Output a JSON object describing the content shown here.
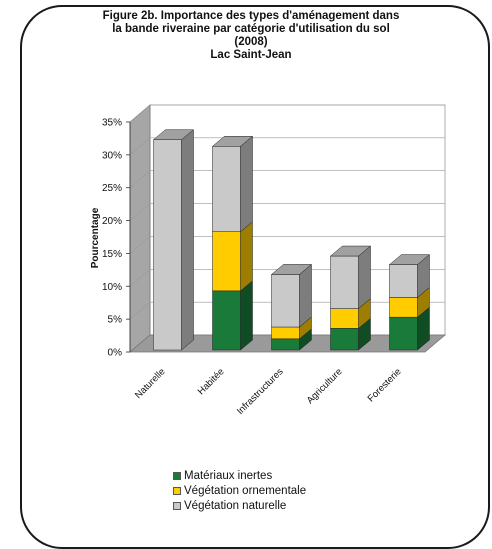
{
  "chart_data": {
    "type": "bar",
    "stacked": true,
    "three_d": true,
    "title_lines": [
      "Figure 2b. Importance des types d'aménagement dans",
      "la bande riveraine par catégorie d'utilisation du sol",
      "(2008)",
      "Lac Saint-Jean"
    ],
    "ylabel": "Pourcentage",
    "xlabel": "",
    "ylim": [
      0,
      35
    ],
    "yticks": [
      "0%",
      "5%",
      "10%",
      "15%",
      "20%",
      "25%",
      "30%",
      "35%"
    ],
    "grid": true,
    "legend_position": "bottom",
    "categories": [
      "Naturelle",
      "Habitée",
      "Infrastructures",
      "Agriculture",
      "Foresterie"
    ],
    "series": [
      {
        "name": "Matériaux inertes",
        "color": "#1a7a3a",
        "values": [
          0,
          9,
          1.7,
          3.3,
          5
        ]
      },
      {
        "name": "Végétation ornementale",
        "color": "#ffcc00",
        "values": [
          0,
          9,
          1.8,
          3,
          3
        ]
      },
      {
        "name": "Végétation naturelle",
        "color": "#c9c9c9",
        "values": [
          32,
          13,
          8,
          8,
          5
        ]
      }
    ]
  }
}
